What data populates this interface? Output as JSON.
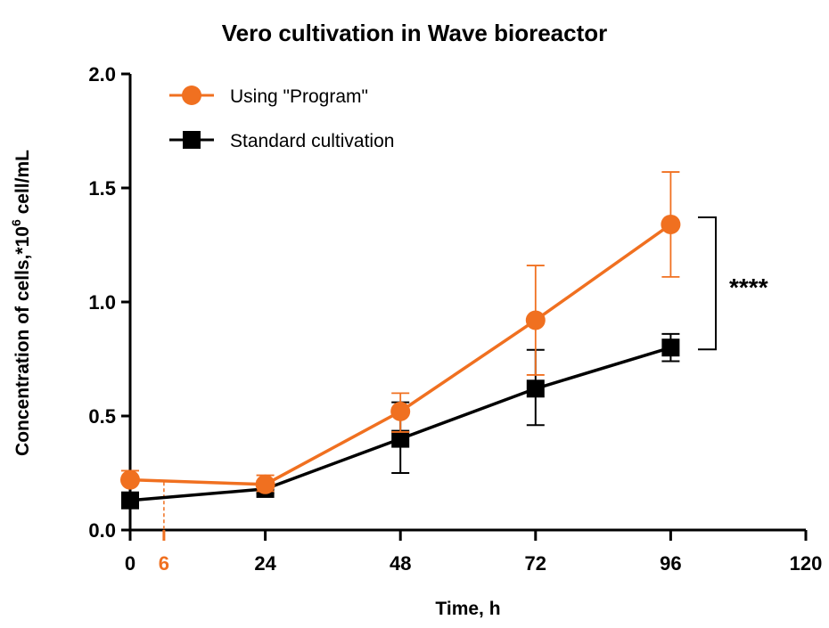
{
  "chart_data": {
    "type": "line",
    "title": "Vero cultivation in Wave bioreactor",
    "xlabel": "Time, h",
    "ylabel_main": "Concentration of cells,*10",
    "ylabel_sup": "6",
    "ylabel_tail": " cell/mL",
    "xlim": [
      0,
      120
    ],
    "ylim": [
      0,
      2.0
    ],
    "xticks": [
      0,
      24,
      48,
      72,
      96,
      120
    ],
    "xtick_labels": [
      "0",
      "24",
      "48",
      "72",
      "96",
      "120"
    ],
    "yticks": [
      0,
      0.5,
      1.0,
      1.5,
      2.0
    ],
    "ytick_labels": [
      "0.0",
      "0.5",
      "1.0",
      "1.5",
      "2.0"
    ],
    "grid": false,
    "legend_position": "top-left",
    "annotation_marker": {
      "x": 6,
      "label": "6",
      "color": "#F07020"
    },
    "significance": {
      "label": "****",
      "between_at_x": 96
    },
    "series": [
      {
        "name": "Using \"Program\"",
        "color": "#F07020",
        "marker": "circle",
        "x": [
          0,
          24,
          48,
          72,
          96
        ],
        "y": [
          0.22,
          0.2,
          0.52,
          0.92,
          1.34
        ],
        "err_low": [
          0.22,
          0.17,
          0.43,
          0.68,
          1.11
        ],
        "err_high": [
          0.26,
          0.24,
          0.6,
          1.16,
          1.57
        ]
      },
      {
        "name": "Standard cultivation",
        "color": "#000000",
        "marker": "square",
        "x": [
          0,
          24,
          48,
          72,
          96
        ],
        "y": [
          0.13,
          0.18,
          0.4,
          0.62,
          0.8
        ],
        "err_low": [
          0.11,
          0.16,
          0.25,
          0.46,
          0.74
        ],
        "err_high": [
          0.15,
          0.2,
          0.56,
          0.79,
          0.86
        ]
      }
    ]
  }
}
